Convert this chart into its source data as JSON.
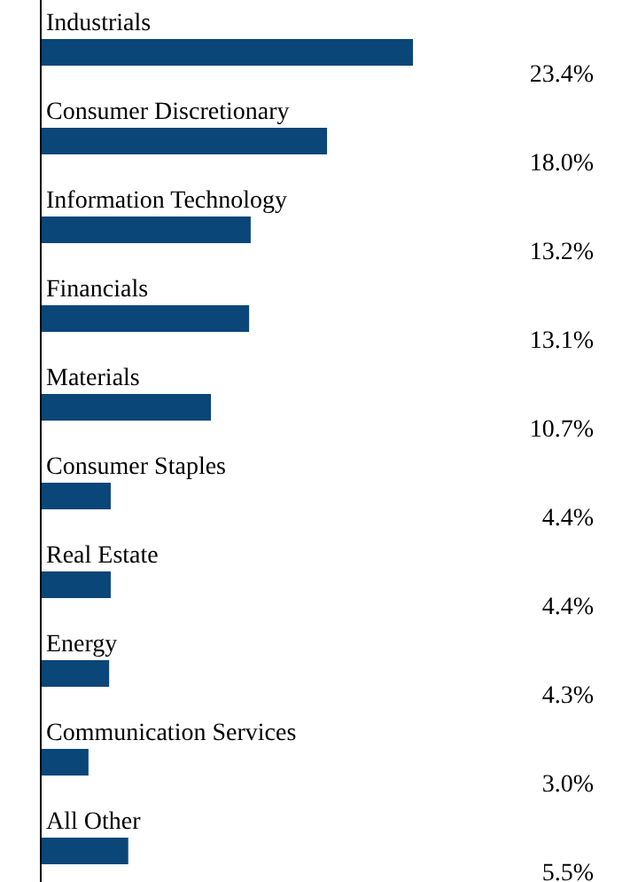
{
  "chart_data": {
    "type": "bar",
    "orientation": "horizontal",
    "categories": [
      "Industrials",
      "Consumer Discretionary",
      "Information Technology",
      "Financials",
      "Materials",
      "Consumer Staples",
      "Real Estate",
      "Energy",
      "Communication Services",
      "All Other"
    ],
    "values": [
      23.4,
      18.0,
      13.2,
      13.1,
      10.7,
      4.4,
      4.4,
      4.3,
      3.0,
      5.5
    ],
    "value_labels": [
      "23.4%",
      "18.0%",
      "13.2%",
      "13.1%",
      "10.7%",
      "4.4%",
      "4.4%",
      "4.3%",
      "3.0%",
      "5.5%"
    ],
    "color": "#0b4679",
    "relative": false
  }
}
